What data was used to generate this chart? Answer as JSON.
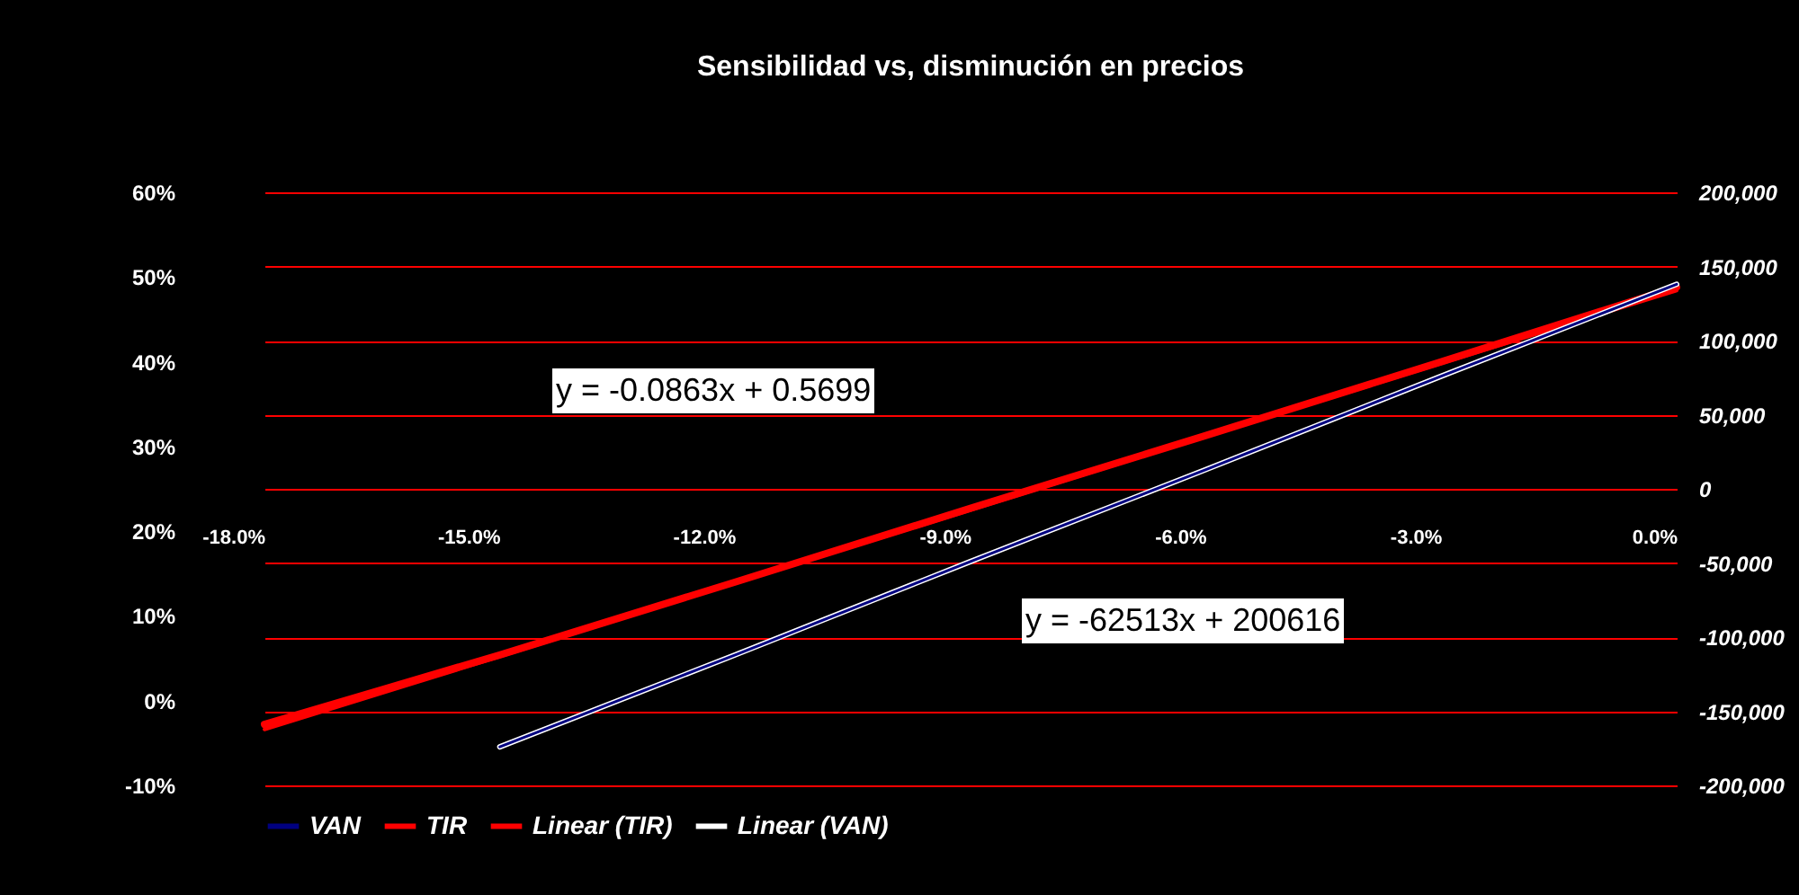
{
  "chart_data": {
    "type": "line",
    "title": "Sensibilidad vs, disminución en precios",
    "categories": [
      "-18.0%",
      "-15.0%",
      "-12.0%",
      "-9.0%",
      "-6.0%",
      "-3.0%",
      "0.0%"
    ],
    "series": [
      {
        "name": "VAN",
        "color": "#000080",
        "axis": "y2",
        "values": [
          null,
          -174000,
          -112000,
          -49000,
          13000,
          76000,
          138000
        ]
      },
      {
        "name": "TIR",
        "color": "#ff0000",
        "values": [
          -2.8,
          5.4,
          14.0,
          22.7,
          31.3,
          40.0,
          48.8
        ]
      },
      {
        "name": "Linear (TIR)",
        "color": "#ff0000",
        "values": [
          -3.4,
          5.2,
          13.9,
          22.5,
          31.2,
          39.8,
          48.4
        ]
      },
      {
        "name": "Linear (VAN)",
        "color": "#ffffff",
        "axis": "y2",
        "values": [
          null,
          -174000,
          -112000,
          -49000,
          13000,
          76000,
          138000
        ]
      }
    ],
    "ylim": [
      -10,
      60
    ],
    "yticks": [
      {
        "value": -10,
        "label": "-10%"
      },
      {
        "value": 0,
        "label": "0%"
      },
      {
        "value": 10,
        "label": "10%"
      },
      {
        "value": 20,
        "label": "20%"
      },
      {
        "value": 30,
        "label": "30%"
      },
      {
        "value": 40,
        "label": "40%"
      },
      {
        "value": 50,
        "label": "50%"
      },
      {
        "value": 60,
        "label": "60%"
      }
    ],
    "y2lim": [
      -200000,
      200000
    ],
    "y2ticks": [
      {
        "value": -200000,
        "label": "-200,000"
      },
      {
        "value": -150000,
        "label": "-150,000"
      },
      {
        "value": -100000,
        "label": "-100,000"
      },
      {
        "value": -50000,
        "label": "-50,000"
      },
      0,
      {
        "value": 50000,
        "label": "50,000"
      },
      {
        "value": 100000,
        "label": "100,000"
      },
      {
        "value": 150000,
        "label": "150,000"
      },
      {
        "value": 200000,
        "label": "200,000"
      }
    ],
    "grid": "y2",
    "legend": "bottom",
    "marker": "none",
    "annotations": [
      "y = -0.0863x + 0.5699",
      "y = -62513x + 200616"
    ]
  }
}
